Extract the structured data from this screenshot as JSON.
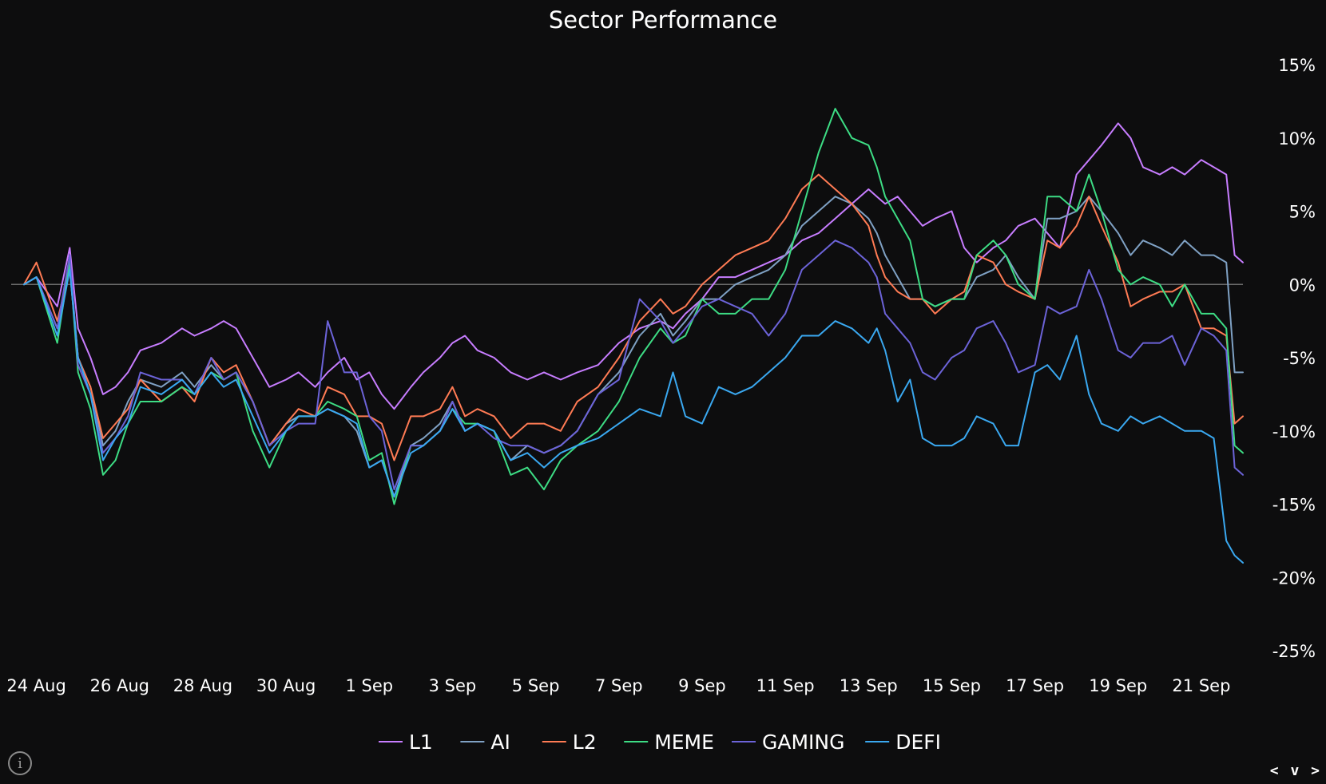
{
  "chart_data": {
    "type": "line",
    "title": "Sector Performance",
    "xlabel": "",
    "ylabel": "",
    "ylim": [
      -25,
      15
    ],
    "yticks": [
      15,
      10,
      5,
      0,
      -5,
      -10,
      -15,
      -20,
      -25
    ],
    "ytick_labels": [
      "15%",
      "10%",
      "5%",
      "0%",
      "-5%",
      "-10%",
      "-15%",
      "-20%",
      "-25%"
    ],
    "xlim": [
      23.7,
      53.0
    ],
    "xticks": [
      24,
      26,
      28,
      30,
      32,
      34,
      36,
      38,
      40,
      42,
      44,
      46,
      48,
      50,
      52
    ],
    "xtick_labels": [
      "24 Aug",
      "26 Aug",
      "28 Aug",
      "30 Aug",
      "1 Sep",
      "3 Sep",
      "5 Sep",
      "7 Sep",
      "9 Sep",
      "11 Sep",
      "13 Sep",
      "15 Sep",
      "17 Sep",
      "19 Sep",
      "21 Sep"
    ],
    "x_unit": "days since 1 Aug",
    "grid": false,
    "zero_line": true,
    "legend_position": "bottom",
    "series": [
      {
        "name": "L1",
        "color": "#c77dff",
        "x": [
          23.7,
          24.0,
          24.5,
          24.8,
          25.0,
          25.3,
          25.6,
          25.9,
          26.2,
          26.5,
          27.0,
          27.5,
          27.8,
          28.2,
          28.5,
          28.8,
          29.2,
          29.6,
          30.0,
          30.3,
          30.7,
          31.0,
          31.4,
          31.7,
          32.0,
          32.3,
          32.6,
          33.0,
          33.3,
          33.7,
          34.0,
          34.3,
          34.6,
          35.0,
          35.4,
          35.8,
          36.2,
          36.6,
          37.0,
          37.5,
          38.0,
          38.5,
          39.0,
          39.3,
          39.6,
          40.0,
          40.4,
          40.8,
          41.2,
          41.6,
          42.0,
          42.4,
          42.8,
          43.2,
          43.6,
          44.0,
          44.2,
          44.4,
          44.7,
          45.0,
          45.3,
          45.6,
          46.0,
          46.3,
          46.6,
          47.0,
          47.3,
          47.6,
          48.0,
          48.3,
          48.6,
          49.0,
          49.3,
          49.6,
          50.0,
          50.3,
          50.6,
          51.0,
          51.3,
          51.6,
          52.0,
          52.3,
          52.6,
          52.8,
          53.0
        ],
        "values": [
          0,
          0.5,
          -1.5,
          2.5,
          -3,
          -5,
          -7.5,
          -7,
          -6,
          -4.5,
          -4,
          -3,
          -3.5,
          -3,
          -2.5,
          -3,
          -5,
          -7,
          -6.5,
          -6,
          -7,
          -6,
          -5,
          -6.5,
          -6,
          -7.5,
          -8.5,
          -7,
          -6,
          -5,
          -4,
          -3.5,
          -4.5,
          -5,
          -6,
          -6.5,
          -6,
          -6.5,
          -6,
          -5.5,
          -4,
          -3,
          -2.5,
          -3,
          -2,
          -1,
          0.5,
          0.5,
          1,
          1.5,
          2,
          3,
          3.5,
          4.5,
          5.5,
          6.5,
          6,
          5.5,
          6,
          5,
          4,
          4.5,
          5,
          2.5,
          1.5,
          2.5,
          3,
          4,
          4.5,
          3.5,
          2.5,
          7.5,
          8.5,
          9.5,
          11,
          10,
          8,
          7.5,
          8,
          7.5,
          8.5,
          8,
          7.5,
          2,
          1.5
        ]
      },
      {
        "name": "AI",
        "color": "#7fa1c4",
        "x": [
          23.7,
          24.0,
          24.5,
          24.8,
          25.0,
          25.3,
          25.6,
          25.9,
          26.2,
          26.5,
          27.0,
          27.5,
          27.8,
          28.2,
          28.5,
          28.8,
          29.2,
          29.6,
          30.0,
          30.3,
          30.7,
          31.0,
          31.4,
          31.7,
          32.0,
          32.3,
          32.6,
          33.0,
          33.3,
          33.7,
          34.0,
          34.3,
          34.6,
          35.0,
          35.4,
          35.8,
          36.2,
          36.6,
          37.0,
          37.5,
          38.0,
          38.5,
          39.0,
          39.3,
          39.6,
          40.0,
          40.4,
          40.8,
          41.2,
          41.6,
          42.0,
          42.4,
          42.8,
          43.2,
          43.6,
          44.0,
          44.2,
          44.4,
          44.7,
          45.0,
          45.3,
          45.6,
          46.0,
          46.3,
          46.6,
          47.0,
          47.3,
          47.6,
          48.0,
          48.3,
          48.6,
          49.0,
          49.3,
          49.6,
          50.0,
          50.3,
          50.6,
          51.0,
          51.3,
          51.6,
          52.0,
          52.3,
          52.6,
          52.8,
          53.0
        ],
        "values": [
          0,
          0.5,
          -3,
          1.5,
          -5,
          -7,
          -11,
          -10,
          -8,
          -6.5,
          -7,
          -6,
          -7,
          -5.5,
          -6.5,
          -6,
          -8,
          -11,
          -9.5,
          -9,
          -9,
          -8.5,
          -9,
          -10,
          -12.5,
          -12,
          -14.5,
          -11,
          -10.5,
          -9.5,
          -8,
          -10,
          -9.5,
          -10,
          -12,
          -11,
          -11.5,
          -11,
          -10,
          -7.5,
          -6,
          -3.5,
          -2,
          -3.5,
          -2.5,
          -1,
          -1,
          0,
          0.5,
          1,
          2,
          4,
          5,
          6,
          5.5,
          4.5,
          3.5,
          2,
          0.5,
          -1,
          -1,
          -1.5,
          -1,
          -1,
          0.5,
          1,
          2,
          0.5,
          -1,
          4.5,
          4.5,
          5,
          6,
          5,
          3.5,
          2,
          3,
          2.5,
          2,
          3,
          2,
          2,
          1.5,
          -6,
          -6
        ]
      },
      {
        "name": "L2",
        "color": "#ff7b54",
        "x": [
          23.7,
          24.0,
          24.5,
          24.8,
          25.0,
          25.3,
          25.6,
          25.9,
          26.2,
          26.5,
          27.0,
          27.5,
          27.8,
          28.2,
          28.5,
          28.8,
          29.2,
          29.6,
          30.0,
          30.3,
          30.7,
          31.0,
          31.4,
          31.7,
          32.0,
          32.3,
          32.6,
          33.0,
          33.3,
          33.7,
          34.0,
          34.3,
          34.6,
          35.0,
          35.4,
          35.8,
          36.2,
          36.6,
          37.0,
          37.5,
          38.0,
          38.5,
          39.0,
          39.3,
          39.6,
          40.0,
          40.4,
          40.8,
          41.2,
          41.6,
          42.0,
          42.4,
          42.8,
          43.2,
          43.6,
          44.0,
          44.2,
          44.4,
          44.7,
          45.0,
          45.3,
          45.6,
          46.0,
          46.3,
          46.6,
          47.0,
          47.3,
          47.6,
          48.0,
          48.3,
          48.6,
          49.0,
          49.3,
          49.6,
          50.0,
          50.3,
          50.6,
          51.0,
          51.3,
          51.6,
          52.0,
          52.3,
          52.6,
          52.8,
          53.0
        ],
        "values": [
          0,
          1.5,
          -2.5,
          1,
          -5,
          -7,
          -10.5,
          -9.5,
          -8.5,
          -6.5,
          -8,
          -7,
          -8,
          -5,
          -6,
          -5.5,
          -8,
          -11,
          -9.5,
          -8.5,
          -9,
          -7,
          -7.5,
          -9,
          -9,
          -9.5,
          -12,
          -9,
          -9,
          -8.5,
          -7,
          -9,
          -8.5,
          -9,
          -10.5,
          -9.5,
          -9.5,
          -10,
          -8,
          -7,
          -5,
          -2.5,
          -1,
          -2,
          -1.5,
          0,
          1,
          2,
          2.5,
          3,
          4.5,
          6.5,
          7.5,
          6.5,
          5.5,
          4,
          2,
          0.5,
          -0.5,
          -1,
          -1,
          -2,
          -1,
          -0.5,
          2,
          1.5,
          0,
          -0.5,
          -1,
          3,
          2.5,
          4,
          6,
          4,
          1.5,
          -1.5,
          -1,
          -0.5,
          -0.5,
          0,
          -3,
          -3,
          -3.5,
          -9.5,
          -9
        ]
      },
      {
        "name": "MEME",
        "color": "#3ddc84",
        "x": [
          23.7,
          24.0,
          24.5,
          24.8,
          25.0,
          25.3,
          25.6,
          25.9,
          26.2,
          26.5,
          27.0,
          27.5,
          27.8,
          28.2,
          28.5,
          28.8,
          29.2,
          29.6,
          30.0,
          30.3,
          30.7,
          31.0,
          31.4,
          31.7,
          32.0,
          32.3,
          32.6,
          33.0,
          33.3,
          33.7,
          34.0,
          34.3,
          34.6,
          35.0,
          35.4,
          35.8,
          36.2,
          36.6,
          37.0,
          37.5,
          38.0,
          38.5,
          39.0,
          39.3,
          39.6,
          40.0,
          40.4,
          40.8,
          41.2,
          41.6,
          42.0,
          42.4,
          42.8,
          43.2,
          43.6,
          44.0,
          44.2,
          44.4,
          44.7,
          45.0,
          45.3,
          45.6,
          46.0,
          46.3,
          46.6,
          47.0,
          47.3,
          47.6,
          48.0,
          48.3,
          48.6,
          49.0,
          49.3,
          49.6,
          50.0,
          50.3,
          50.6,
          51.0,
          51.3,
          51.6,
          52.0,
          52.3,
          52.6,
          52.8,
          53.0
        ],
        "values": [
          0,
          0.5,
          -4,
          1.5,
          -6,
          -8.5,
          -13,
          -12,
          -9.5,
          -8,
          -8,
          -7,
          -7.5,
          -6,
          -6.5,
          -6,
          -10,
          -12.5,
          -10,
          -9,
          -9,
          -8,
          -8.5,
          -9,
          -12,
          -11.5,
          -15,
          -11,
          -11,
          -10,
          -8.5,
          -9.5,
          -9.5,
          -10,
          -13,
          -12.5,
          -14,
          -12,
          -11,
          -10,
          -8,
          -5,
          -3,
          -4,
          -3.5,
          -1,
          -2,
          -2,
          -1,
          -1,
          1,
          5,
          9,
          12,
          10,
          9.5,
          8,
          6,
          4.5,
          3,
          -1,
          -1.5,
          -1,
          -1,
          2,
          3,
          2,
          0,
          -1,
          6,
          6,
          5,
          7.5,
          5,
          1,
          0,
          0.5,
          0,
          -1.5,
          0,
          -2,
          -2,
          -3,
          -11,
          -11.5
        ]
      },
      {
        "name": "GAMING",
        "color": "#6c63d8",
        "x": [
          23.7,
          24.0,
          24.5,
          24.8,
          25.0,
          25.3,
          25.6,
          25.9,
          26.2,
          26.5,
          27.0,
          27.5,
          27.8,
          28.2,
          28.5,
          28.8,
          29.2,
          29.6,
          30.0,
          30.3,
          30.7,
          31.0,
          31.4,
          31.7,
          32.0,
          32.3,
          32.6,
          33.0,
          33.3,
          33.7,
          34.0,
          34.3,
          34.6,
          35.0,
          35.4,
          35.8,
          36.2,
          36.6,
          37.0,
          37.5,
          38.0,
          38.5,
          39.0,
          39.3,
          39.6,
          40.0,
          40.4,
          40.8,
          41.2,
          41.6,
          42.0,
          42.4,
          42.8,
          43.2,
          43.6,
          44.0,
          44.2,
          44.4,
          44.7,
          45.0,
          45.3,
          45.6,
          46.0,
          46.3,
          46.6,
          47.0,
          47.3,
          47.6,
          48.0,
          48.3,
          48.6,
          49.0,
          49.3,
          49.6,
          50.0,
          50.3,
          50.6,
          51.0,
          51.3,
          51.6,
          52.0,
          52.3,
          52.6,
          52.8,
          53.0
        ],
        "values": [
          0,
          0.5,
          -3,
          2,
          -5.5,
          -7.5,
          -11.5,
          -10.5,
          -9,
          -6,
          -6.5,
          -6.5,
          -7.5,
          -5,
          -6.5,
          -6,
          -8,
          -11,
          -10,
          -9.5,
          -9.5,
          -2.5,
          -6,
          -6,
          -9,
          -10,
          -14,
          -11,
          -11,
          -10,
          -8,
          -10,
          -9.5,
          -10.5,
          -11,
          -11,
          -11.5,
          -11,
          -10,
          -7.5,
          -6.5,
          -1,
          -2.5,
          -4,
          -3,
          -1.5,
          -1,
          -1.5,
          -2,
          -3.5,
          -2,
          1,
          2,
          3,
          2.5,
          1.5,
          0.5,
          -2,
          -3,
          -4,
          -6,
          -6.5,
          -5,
          -4.5,
          -3,
          -2.5,
          -4,
          -6,
          -5.5,
          -1.5,
          -2,
          -1.5,
          1,
          -1,
          -4.5,
          -5,
          -4,
          -4,
          -3.5,
          -5.5,
          -3,
          -3.5,
          -4.5,
          -12.5,
          -13
        ]
      },
      {
        "name": "DEFI",
        "color": "#3aa8f0",
        "x": [
          23.7,
          24.0,
          24.5,
          24.8,
          25.0,
          25.3,
          25.6,
          25.9,
          26.2,
          26.5,
          27.0,
          27.5,
          27.8,
          28.2,
          28.5,
          28.8,
          29.2,
          29.6,
          30.0,
          30.3,
          30.7,
          31.0,
          31.4,
          31.7,
          32.0,
          32.3,
          32.6,
          33.0,
          33.3,
          33.7,
          34.0,
          34.3,
          34.6,
          35.0,
          35.4,
          35.8,
          36.2,
          36.6,
          37.0,
          37.5,
          38.0,
          38.5,
          39.0,
          39.3,
          39.6,
          40.0,
          40.4,
          40.8,
          41.2,
          41.6,
          42.0,
          42.4,
          42.8,
          43.2,
          43.6,
          44.0,
          44.2,
          44.4,
          44.7,
          45.0,
          45.3,
          45.6,
          46.0,
          46.3,
          46.6,
          47.0,
          47.3,
          47.6,
          48.0,
          48.3,
          48.6,
          49.0,
          49.3,
          49.6,
          50.0,
          50.3,
          50.6,
          51.0,
          51.3,
          51.6,
          52.0,
          52.3,
          52.6,
          52.8,
          53.0
        ],
        "values": [
          0,
          0.5,
          -3.5,
          1,
          -5,
          -7.5,
          -12,
          -10.5,
          -9.5,
          -7,
          -7.5,
          -6.5,
          -7.5,
          -6,
          -7,
          -6.5,
          -9,
          -11.5,
          -10,
          -9,
          -9,
          -8.5,
          -9,
          -9.5,
          -12.5,
          -12,
          -14.5,
          -11.5,
          -11,
          -10,
          -8.5,
          -10,
          -9.5,
          -10,
          -12,
          -11.5,
          -12.5,
          -11.5,
          -11,
          -10.5,
          -9.5,
          -8.5,
          -9,
          -6,
          -9,
          -9.5,
          -7,
          -7.5,
          -7,
          -6,
          -5,
          -3.5,
          -3.5,
          -2.5,
          -3,
          -4,
          -3,
          -4.5,
          -8,
          -6.5,
          -10.5,
          -11,
          -11,
          -10.5,
          -9,
          -9.5,
          -11,
          -11,
          -6,
          -5.5,
          -6.5,
          -3.5,
          -7.5,
          -9.5,
          -10,
          -9,
          -9.5,
          -9,
          -9.5,
          -10,
          -10,
          -10.5,
          -17.5,
          -18.5,
          -19
        ]
      }
    ]
  },
  "controls": {
    "info_icon": "info-icon",
    "nav_prev": "<",
    "nav_down": "v",
    "nav_next": ">"
  }
}
